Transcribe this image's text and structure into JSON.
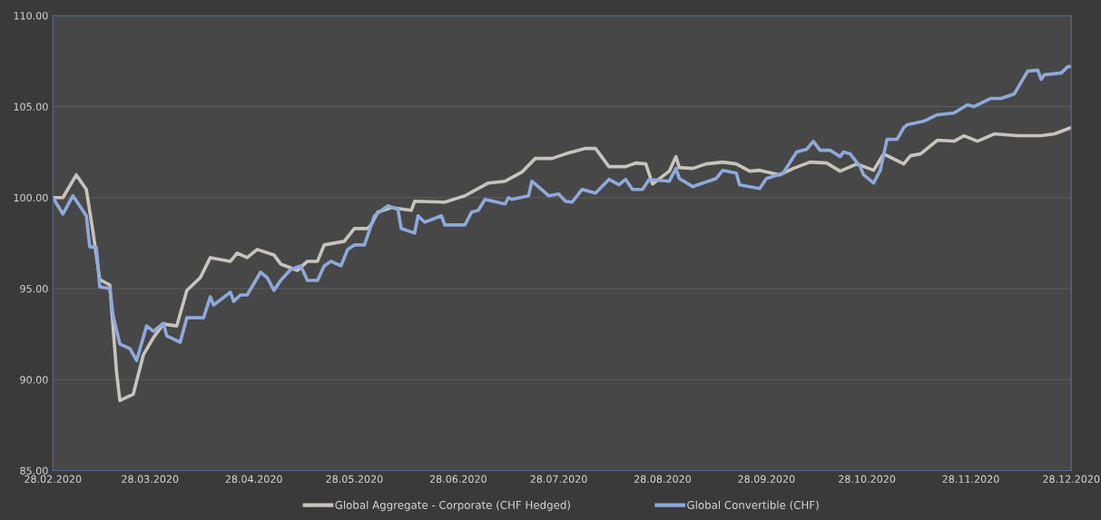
{
  "chart_data": {
    "type": "line",
    "xlim": [
      "2020-02-28",
      "2020-12-28"
    ],
    "xticks": [
      {
        "value": "2020-02-28",
        "label": "28.02.2020"
      },
      {
        "value": "2020-03-28",
        "label": "28.03.2020"
      },
      {
        "value": "2020-04-28",
        "label": "28.04.2020"
      },
      {
        "value": "2020-05-28",
        "label": "28.05.2020"
      },
      {
        "value": "2020-06-28",
        "label": "28.06.2020"
      },
      {
        "value": "2020-07-28",
        "label": "28.07.2020"
      },
      {
        "value": "2020-08-28",
        "label": "28.08.2020"
      },
      {
        "value": "2020-09-28",
        "label": "28.09.2020"
      },
      {
        "value": "2020-10-28",
        "label": "28.10.2020"
      },
      {
        "value": "2020-11-28",
        "label": "28.11.2020"
      },
      {
        "value": "2020-12-28",
        "label": "28.12.2020"
      }
    ],
    "ylim": [
      85,
      110
    ],
    "yticks": [
      {
        "value": 85,
        "label": "85.00"
      },
      {
        "value": 90,
        "label": "90.00"
      },
      {
        "value": 95,
        "label": "95.00"
      },
      {
        "value": 100,
        "label": "100.00"
      },
      {
        "value": 105,
        "label": "105.00"
      },
      {
        "value": 110,
        "label": "110.00"
      }
    ],
    "grid": "y",
    "legend": "bottom",
    "marker": "none",
    "line_style": "solid",
    "series": [
      {
        "name": "Global Aggregate - Corporate (CHF Hedged)",
        "color": "#c8c4bc",
        "x": [
          "2020-02-28",
          "2020-03-02",
          "2020-03-06",
          "2020-03-09",
          "2020-03-11",
          "2020-03-13",
          "2020-03-16",
          "2020-03-18",
          "2020-03-19",
          "2020-03-23",
          "2020-03-26",
          "2020-03-29",
          "2020-04-01",
          "2020-04-05",
          "2020-04-08",
          "2020-04-12",
          "2020-04-15",
          "2020-04-21",
          "2020-04-23",
          "2020-04-26",
          "2020-04-29",
          "2020-05-04",
          "2020-05-06",
          "2020-05-11",
          "2020-05-14",
          "2020-05-17",
          "2020-05-19",
          "2020-05-25",
          "2020-05-28",
          "2020-06-01",
          "2020-06-02",
          "2020-06-04",
          "2020-06-08",
          "2020-06-14",
          "2020-06-15",
          "2020-06-24",
          "2020-06-30",
          "2020-07-07",
          "2020-07-12",
          "2020-07-17",
          "2020-07-21",
          "2020-07-26",
          "2020-07-30",
          "2020-08-05",
          "2020-08-08",
          "2020-08-12",
          "2020-08-17",
          "2020-08-20",
          "2020-08-23",
          "2020-08-25",
          "2020-08-30",
          "2020-09-01",
          "2020-09-02",
          "2020-09-06",
          "2020-09-10",
          "2020-09-15",
          "2020-09-19",
          "2020-09-23",
          "2020-09-26",
          "2020-10-02",
          "2020-10-06",
          "2020-10-11",
          "2020-10-16",
          "2020-10-20",
          "2020-10-25",
          "2020-10-30",
          "2020-11-02",
          "2020-11-08",
          "2020-11-10",
          "2020-11-13",
          "2020-11-18",
          "2020-11-23",
          "2020-11-26",
          "2020-11-30",
          "2020-12-05",
          "2020-12-12",
          "2020-12-19",
          "2020-12-23",
          "2020-12-28"
        ],
        "values": [
          100,
          100,
          101.25,
          100.45,
          98.1,
          95.5,
          95.2,
          90.45,
          88.85,
          89.2,
          91.35,
          92.3,
          93.05,
          92.95,
          94.9,
          95.6,
          96.7,
          96.5,
          96.95,
          96.7,
          97.15,
          96.85,
          96.35,
          96.0,
          96.5,
          96.5,
          97.4,
          97.6,
          98.3,
          98.3,
          98.5,
          99.2,
          99.45,
          99.3,
          99.8,
          99.75,
          100.1,
          100.8,
          100.9,
          101.4,
          102.15,
          102.15,
          102.4,
          102.7,
          102.7,
          101.7,
          101.7,
          101.9,
          101.85,
          100.75,
          101.45,
          102.25,
          101.65,
          101.6,
          101.85,
          101.95,
          101.85,
          101.45,
          101.5,
          101.25,
          101.6,
          101.95,
          101.9,
          101.45,
          101.85,
          101.5,
          102.4,
          101.85,
          102.3,
          102.4,
          103.15,
          103.1,
          103.4,
          103.1,
          103.5,
          103.4,
          103.4,
          103.5,
          103.85
        ]
      },
      {
        "name": "Global Convertible (CHF)",
        "color": "#8ea9db",
        "x": [
          "2020-02-28",
          "2020-03-02",
          "2020-03-05",
          "2020-03-09",
          "2020-03-10",
          "2020-03-12",
          "2020-03-13",
          "2020-03-16",
          "2020-03-17",
          "2020-03-19",
          "2020-03-22",
          "2020-03-24",
          "2020-03-27",
          "2020-03-29",
          "2020-04-01",
          "2020-04-02",
          "2020-04-06",
          "2020-04-08",
          "2020-04-13",
          "2020-04-15",
          "2020-04-16",
          "2020-04-21",
          "2020-04-22",
          "2020-04-24",
          "2020-04-26",
          "2020-04-30",
          "2020-05-02",
          "2020-05-04",
          "2020-05-06",
          "2020-05-09",
          "2020-05-12",
          "2020-05-14",
          "2020-05-17",
          "2020-05-19",
          "2020-05-21",
          "2020-05-24",
          "2020-05-26",
          "2020-05-28",
          "2020-05-31",
          "2020-06-03",
          "2020-06-07",
          "2020-06-10",
          "2020-06-11",
          "2020-06-15",
          "2020-06-16",
          "2020-06-18",
          "2020-06-23",
          "2020-06-24",
          "2020-06-30",
          "2020-07-02",
          "2020-07-04",
          "2020-07-06",
          "2020-07-12",
          "2020-07-13",
          "2020-07-14",
          "2020-07-19",
          "2020-07-20",
          "2020-07-25",
          "2020-07-28",
          "2020-07-30",
          "2020-08-01",
          "2020-08-04",
          "2020-08-08",
          "2020-08-12",
          "2020-08-15",
          "2020-08-17",
          "2020-08-19",
          "2020-08-22",
          "2020-08-24",
          "2020-08-30",
          "2020-09-01",
          "2020-09-02",
          "2020-09-06",
          "2020-09-09",
          "2020-09-13",
          "2020-09-15",
          "2020-09-19",
          "2020-09-20",
          "2020-09-23",
          "2020-09-26",
          "2020-09-28",
          "2020-10-03",
          "2020-10-07",
          "2020-10-10",
          "2020-10-12",
          "2020-10-14",
          "2020-10-17",
          "2020-10-20",
          "2020-10-21",
          "2020-10-23",
          "2020-10-26",
          "2020-10-27",
          "2020-10-30",
          "2020-11-01",
          "2020-11-03",
          "2020-11-06",
          "2020-11-08",
          "2020-11-09",
          "2020-11-14",
          "2020-11-18",
          "2020-11-23",
          "2020-11-27",
          "2020-11-29",
          "2020-12-04",
          "2020-12-07",
          "2020-12-11",
          "2020-12-15",
          "2020-12-18",
          "2020-12-19",
          "2020-12-20",
          "2020-12-25",
          "2020-12-27",
          "2020-12-28"
        ],
        "values": [
          100,
          99.1,
          100.1,
          99.0,
          97.3,
          97.25,
          95.1,
          95.0,
          93.5,
          91.95,
          91.7,
          91.05,
          92.95,
          92.65,
          93.1,
          92.4,
          92.05,
          93.4,
          93.4,
          94.55,
          94.1,
          94.8,
          94.3,
          94.65,
          94.65,
          95.9,
          95.6,
          94.9,
          95.45,
          96.05,
          96.25,
          95.45,
          95.45,
          96.25,
          96.5,
          96.25,
          97.15,
          97.4,
          97.4,
          99.0,
          99.55,
          99.35,
          98.3,
          98.05,
          99.0,
          98.65,
          99.0,
          98.5,
          98.5,
          99.2,
          99.3,
          99.9,
          99.65,
          100.0,
          99.9,
          100.1,
          100.9,
          100.1,
          100.2,
          99.8,
          99.75,
          100.45,
          100.25,
          101.0,
          100.7,
          101.0,
          100.45,
          100.45,
          101.0,
          100.9,
          101.6,
          101.05,
          100.6,
          100.8,
          101.05,
          101.5,
          101.35,
          100.7,
          100.6,
          100.5,
          101.05,
          101.35,
          102.5,
          102.65,
          103.1,
          102.6,
          102.6,
          102.25,
          102.5,
          102.4,
          101.7,
          101.25,
          100.8,
          101.5,
          103.2,
          103.2,
          103.85,
          104.0,
          104.2,
          104.55,
          104.65,
          105.1,
          105.0,
          105.45,
          105.45,
          105.7,
          106.95,
          107.0,
          106.5,
          106.75,
          106.85,
          107.2,
          107.2
        ]
      }
    ]
  }
}
